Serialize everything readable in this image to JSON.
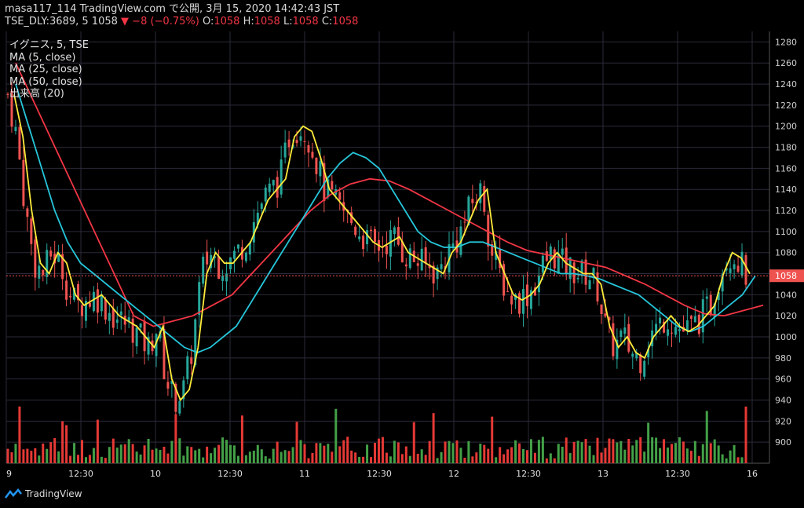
{
  "header": {
    "line1": "masa117_114 TradingView.com で公開, 3月 15, 2020 14:42:43 JST",
    "symbol": "TSE_DLY:3689, 5",
    "last": "1058",
    "change": "−8 (−0.75%)",
    "o_label": "O:",
    "o": "1058",
    "h_label": "H:",
    "h": "1058",
    "l_label": "L:",
    "l": "1058",
    "c_label": "C:",
    "c": "1058"
  },
  "legend": {
    "title": "イグニス, 5, TSE",
    "ma5": "MA (5, close)",
    "ma25": "MA (25, close)",
    "ma50": "MA (50, close)",
    "volume": "出来高 (20)"
  },
  "footer": {
    "brand": "TradingView"
  },
  "colors": {
    "up": "#26a69a",
    "down": "#ef5350",
    "ma5": "#ffeb3b",
    "ma25": "#26c6da",
    "ma50": "#f23645",
    "vol_up": "#43a047",
    "vol_down": "#e53935",
    "grid": "#2a2a3a"
  },
  "chart_data": {
    "type": "candlestick",
    "price_axis": {
      "ylim": [
        880,
        1290
      ],
      "ticks": [
        900,
        920,
        940,
        960,
        980,
        1000,
        1020,
        1040,
        1060,
        1080,
        1100,
        1120,
        1140,
        1160,
        1180,
        1200,
        1220,
        1240,
        1260,
        1280
      ]
    },
    "last_price_label": "1058",
    "x_labels": [
      "9",
      "12:30",
      "10",
      "12:30",
      "11",
      "12:30",
      "12",
      "12:30",
      "13",
      "12:30",
      "16"
    ],
    "ma5": [
      1230,
      1190,
      1120,
      1070,
      1060,
      1080,
      1070,
      1040,
      1030,
      1035,
      1040,
      1030,
      1020,
      1015,
      1010,
      1000,
      990,
      1010,
      960,
      940,
      950,
      990,
      1060,
      1080,
      1070,
      1070,
      1080,
      1090,
      1110,
      1130,
      1140,
      1150,
      1190,
      1200,
      1195,
      1170,
      1140,
      1130,
      1120,
      1110,
      1100,
      1090,
      1085,
      1090,
      1095,
      1080,
      1075,
      1070,
      1065,
      1060,
      1080,
      1090,
      1110,
      1130,
      1140,
      1080,
      1060,
      1040,
      1035,
      1040,
      1050,
      1070,
      1080,
      1070,
      1065,
      1060,
      1060,
      1050,
      1010,
      990,
      1000,
      985,
      980,
      1000,
      1010,
      1020,
      1010,
      1005,
      1010,
      1020,
      1030,
      1060,
      1080,
      1075,
      1060
    ],
    "ma25": [
      1240,
      1200,
      1160,
      1120,
      1090,
      1070,
      1060,
      1050,
      1040,
      1030,
      1020,
      1010,
      1000,
      990,
      985,
      990,
      1000,
      1010,
      1030,
      1050,
      1070,
      1090,
      1110,
      1130,
      1150,
      1165,
      1175,
      1170,
      1160,
      1140,
      1120,
      1100,
      1090,
      1085,
      1085,
      1090,
      1090,
      1085,
      1080,
      1075,
      1070,
      1065,
      1060,
      1060,
      1058,
      1055,
      1050,
      1045,
      1040,
      1030,
      1020,
      1010,
      1005,
      1010,
      1020,
      1030,
      1040,
      1058
    ],
    "ma50": [
      1260,
      1220,
      1180,
      1140,
      1100,
      1060,
      1020,
      1010,
      1015,
      1020,
      1030,
      1040,
      1060,
      1080,
      1100,
      1120,
      1135,
      1145,
      1150,
      1148,
      1140,
      1130,
      1120,
      1110,
      1100,
      1090,
      1082,
      1078,
      1074,
      1070,
      1066,
      1058,
      1050,
      1040,
      1030,
      1022,
      1020,
      1025,
      1030
    ]
  }
}
